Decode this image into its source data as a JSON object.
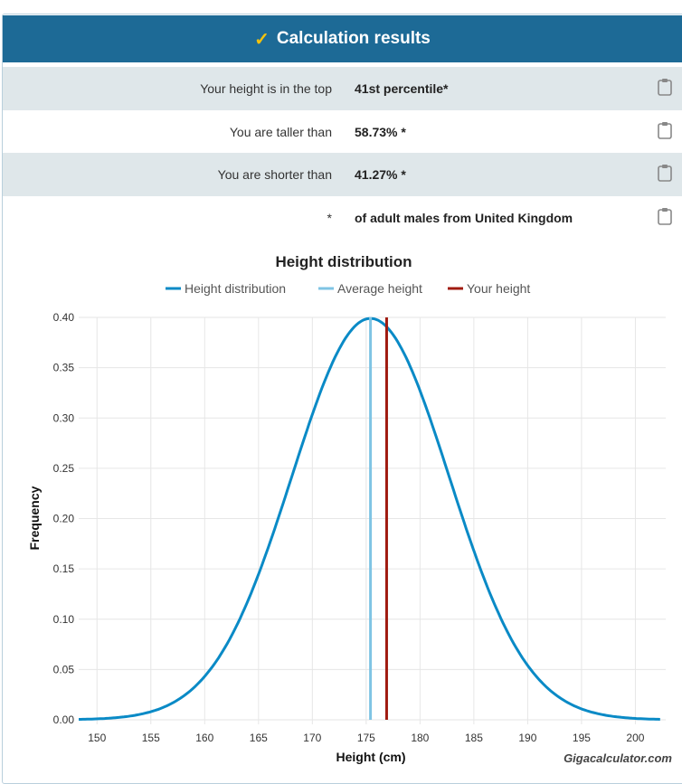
{
  "header": {
    "title": "Calculation results",
    "icon": "check-icon"
  },
  "rows": [
    {
      "label": "Your height is in the top",
      "value": "41st percentile*"
    },
    {
      "label": "You are taller than",
      "value": "58.73% *"
    },
    {
      "label": "You are shorter than",
      "value": "41.27% *"
    },
    {
      "label": "*",
      "value": "of adult males from United Kingdom"
    }
  ],
  "chart_data": {
    "type": "line",
    "title": "Height distribution",
    "xlabel": "Height (cm)",
    "ylabel": "Frequency",
    "xlim": [
      148.3,
      202.4
    ],
    "ylim": [
      0,
      0.4
    ],
    "xticks": [
      150,
      155,
      160,
      165,
      170,
      175,
      180,
      185,
      190,
      195,
      200
    ],
    "yticks": [
      "0.00",
      "0.05",
      "0.10",
      "0.15",
      "0.20",
      "0.25",
      "0.30",
      "0.35",
      "0.40"
    ],
    "grid": true,
    "legend_position": "top",
    "series": [
      {
        "name": "Height distribution",
        "type": "normal-curve",
        "mean": 175.4,
        "std": 7.3,
        "peak": 0.399,
        "color": "#0a8ac6"
      },
      {
        "name": "Average height",
        "type": "vline",
        "x": 175.4,
        "color": "#7fc4e4"
      },
      {
        "name": "Your height",
        "type": "vline",
        "x": 176.9,
        "color": "#a01b10"
      }
    ],
    "credit": "Gigacalculator.com"
  }
}
